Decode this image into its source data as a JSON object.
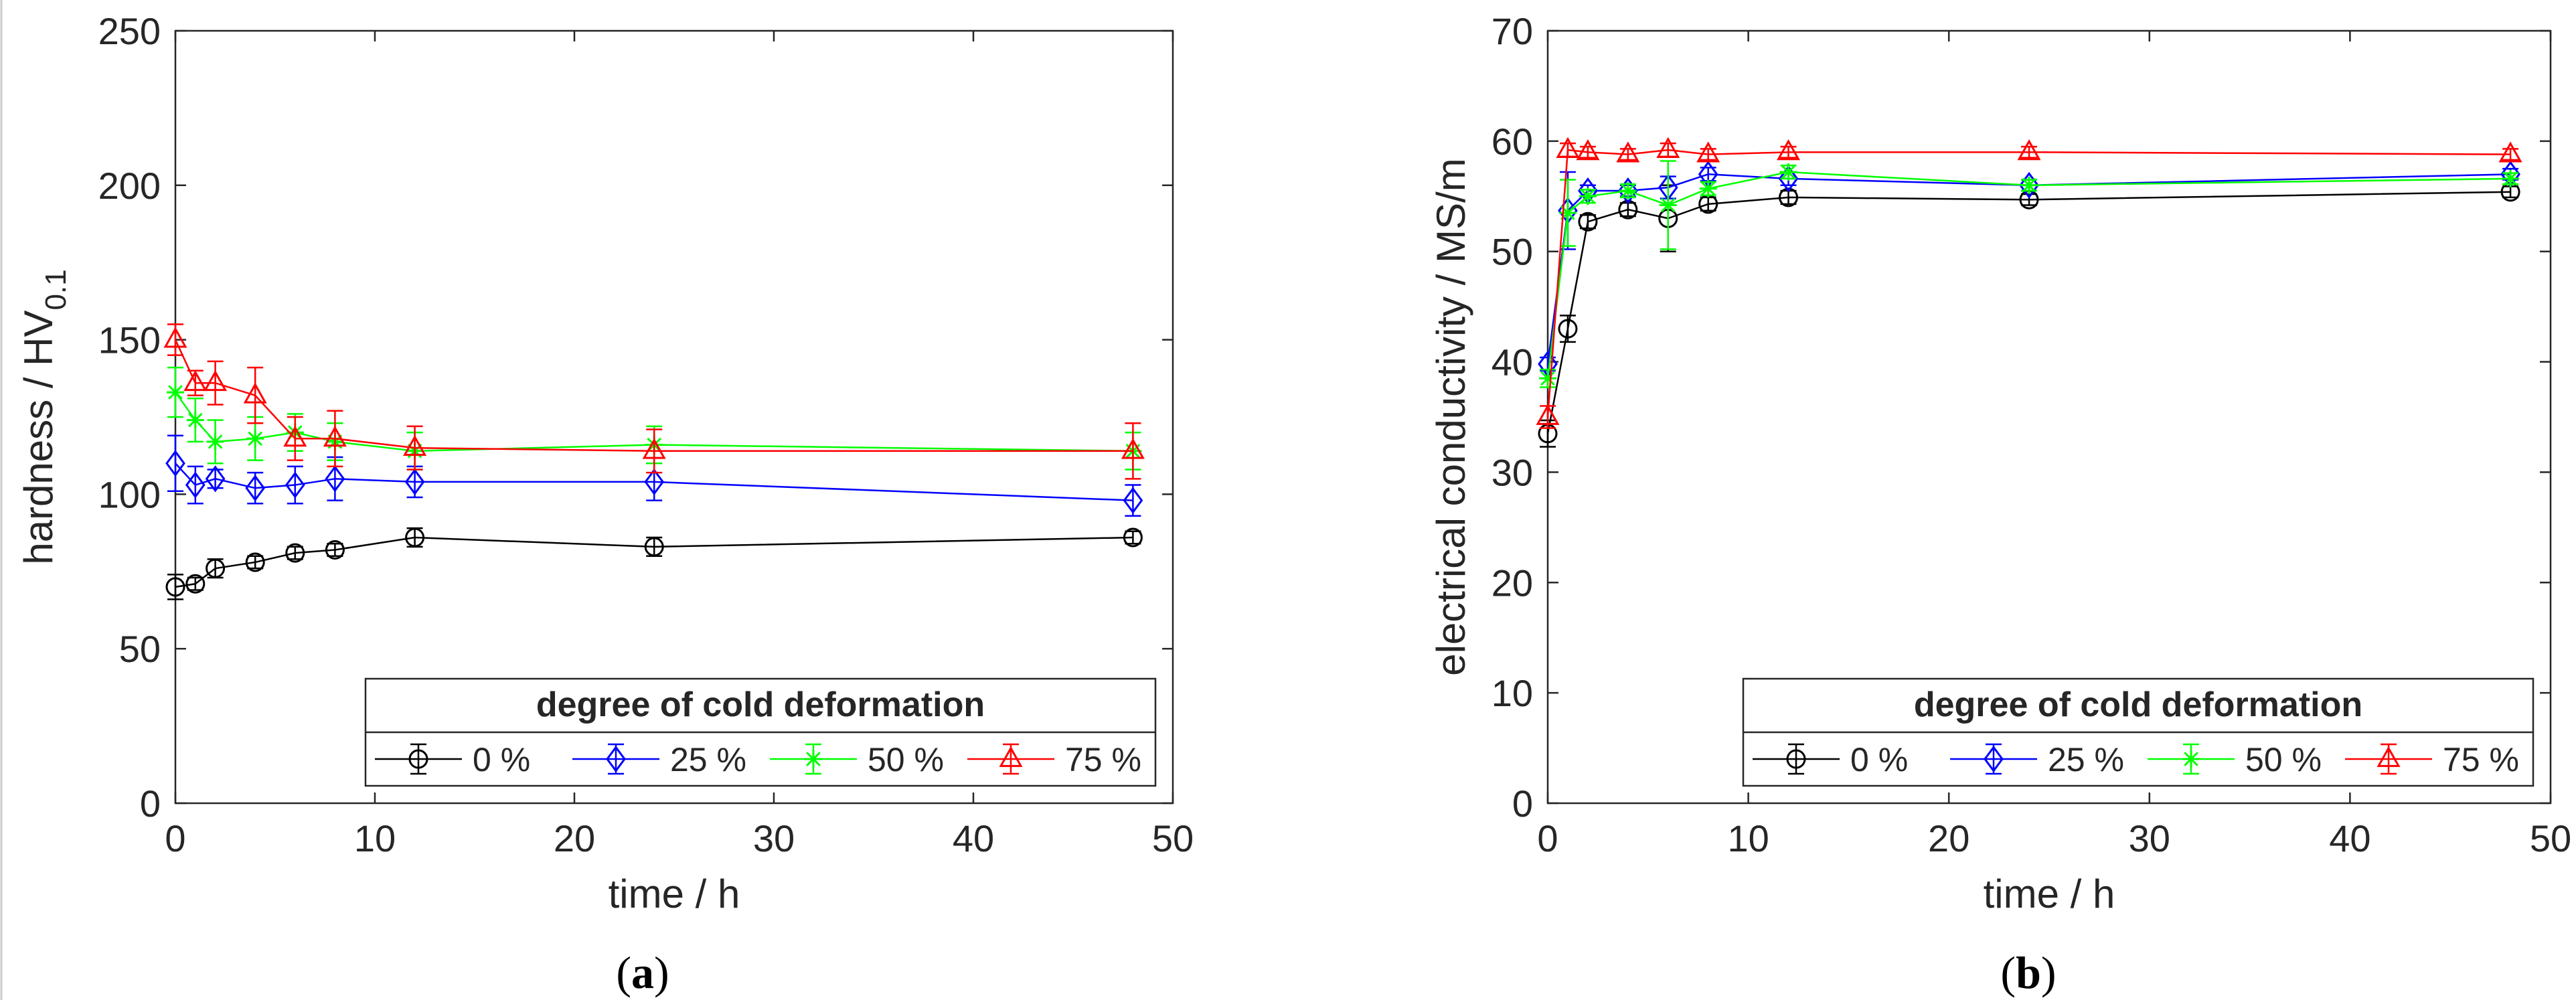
{
  "chart_data": [
    {
      "type": "line",
      "panel_label": "a",
      "caption_open": "(",
      "caption_close": ")",
      "xlabel": "time / h",
      "ylabel_main": "hardness / HV",
      "ylabel_sub": "0.1",
      "xlim": [
        0,
        50
      ],
      "ylim": [
        0,
        250
      ],
      "xticks": [
        0,
        10,
        20,
        30,
        40,
        50
      ],
      "yticks": [
        0,
        50,
        100,
        150,
        200,
        250
      ],
      "grid": false,
      "legend": {
        "title": "degree of cold deformation",
        "placement": "bottom-right",
        "orientation": "horizontal"
      },
      "x": [
        0,
        1,
        2,
        4,
        6,
        8,
        12,
        24,
        48
      ],
      "series": [
        {
          "name": "0 %",
          "color": "#000000",
          "marker": "circle",
          "values": [
            70,
            71,
            76,
            78,
            81,
            82,
            86,
            83,
            86
          ],
          "errors": [
            4,
            2,
            3,
            2,
            2,
            2,
            3,
            3,
            2
          ]
        },
        {
          "name": "25 %",
          "color": "#0000ff",
          "marker": "diamond",
          "values": [
            110,
            103,
            105,
            102,
            103,
            105,
            104,
            104,
            98
          ],
          "errors": [
            9,
            6,
            3,
            5,
            6,
            7,
            5,
            6,
            5
          ]
        },
        {
          "name": "50 %",
          "color": "#00ff00",
          "marker": "asterisk",
          "values": [
            133,
            124,
            117,
            118,
            120,
            117,
            114,
            116,
            114
          ],
          "errors": [
            8,
            7,
            7,
            7,
            6,
            6,
            6,
            6,
            6
          ]
        },
        {
          "name": "75 %",
          "color": "#ff0000",
          "marker": "triangle",
          "values": [
            150,
            136,
            136,
            132,
            118,
            118,
            115,
            114,
            114
          ],
          "errors": [
            5,
            4,
            7,
            9,
            7,
            9,
            7,
            7,
            9
          ]
        }
      ]
    },
    {
      "type": "line",
      "panel_label": "b",
      "caption_open": "(",
      "caption_close": ")",
      "xlabel": "time / h",
      "ylabel_main": "electrical conductivity / MS/m",
      "ylabel_sub": "",
      "xlim": [
        0,
        50
      ],
      "ylim": [
        0,
        70
      ],
      "xticks": [
        0,
        10,
        20,
        30,
        40,
        50
      ],
      "yticks": [
        0,
        10,
        20,
        30,
        40,
        50,
        60,
        70
      ],
      "grid": false,
      "legend": {
        "title": "degree of cold deformation",
        "placement": "bottom-right",
        "orientation": "horizontal"
      },
      "x": [
        0,
        1,
        2,
        4,
        6,
        8,
        12,
        24,
        48
      ],
      "series": [
        {
          "name": "0 %",
          "color": "#000000",
          "marker": "circle",
          "values": [
            33.5,
            43,
            52.7,
            53.8,
            53,
            54.3,
            54.9,
            54.7,
            55.4
          ],
          "errors": [
            1.2,
            1.2,
            0.6,
            0.6,
            3,
            0.6,
            0.6,
            0.5,
            0.5
          ]
        },
        {
          "name": "25 %",
          "color": "#0000ff",
          "marker": "diamond",
          "values": [
            39.8,
            53.7,
            55.5,
            55.5,
            55.8,
            57,
            56.6,
            56,
            57
          ],
          "errors": [
            0.6,
            3.5,
            0.5,
            0.5,
            1,
            0.6,
            0.6,
            0.5,
            0.5
          ]
        },
        {
          "name": "50 %",
          "color": "#00ff00",
          "marker": "asterisk",
          "values": [
            38.5,
            53.5,
            55,
            55.5,
            54.2,
            55.7,
            57.2,
            56,
            56.6
          ],
          "errors": [
            0.8,
            3,
            0.6,
            0.6,
            4,
            0.6,
            0.6,
            0.5,
            0.5
          ]
        },
        {
          "name": "75 %",
          "color": "#ff0000",
          "marker": "triangle",
          "values": [
            35,
            59.2,
            59,
            58.8,
            59.2,
            58.8,
            59,
            59,
            58.8
          ],
          "errors": [
            1,
            0.6,
            0.5,
            0.5,
            0.6,
            0.5,
            0.5,
            0.5,
            0.5
          ]
        }
      ]
    }
  ]
}
